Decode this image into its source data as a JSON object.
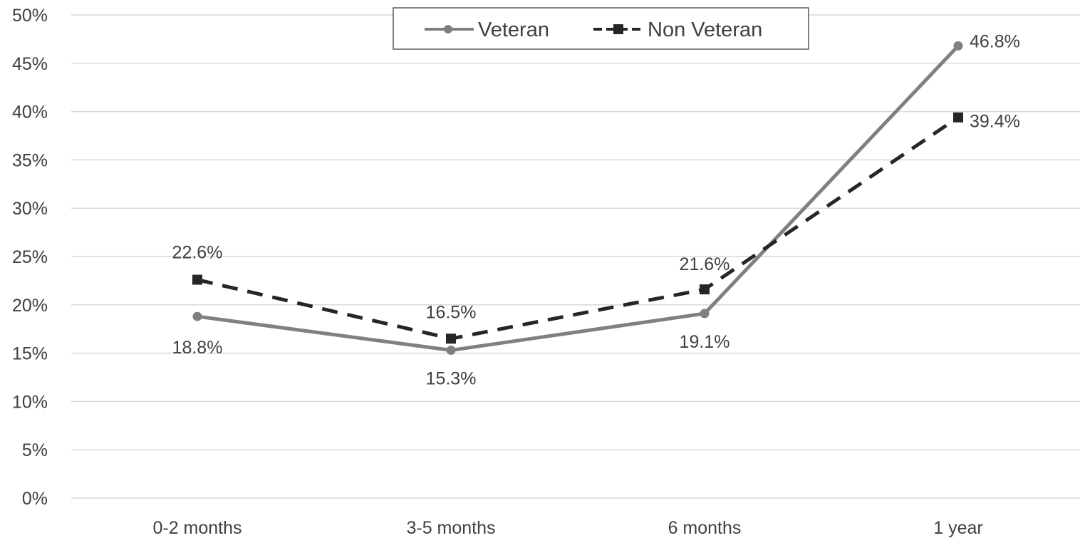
{
  "chart_data": {
    "type": "line",
    "categories": [
      "0-2 months",
      "3-5 months",
      "6 months",
      "1 year"
    ],
    "series": [
      {
        "name": "Veteran",
        "values": [
          18.8,
          15.3,
          19.1,
          46.8
        ],
        "labels": [
          "18.8%",
          "15.3%",
          "19.1%",
          "46.8%"
        ],
        "color": "#808080",
        "line_style": "solid",
        "marker": "circle"
      },
      {
        "name": "Non Veteran",
        "values": [
          22.6,
          16.5,
          21.6,
          39.4
        ],
        "labels": [
          "22.6%",
          "16.5%",
          "21.6%",
          "39.4%"
        ],
        "color": "#262626",
        "line_style": "dashed",
        "marker": "square"
      }
    ],
    "yticks": [
      "0%",
      "5%",
      "10%",
      "15%",
      "20%",
      "25%",
      "30%",
      "35%",
      "40%",
      "45%",
      "50%"
    ],
    "ylim": [
      0,
      50
    ],
    "grid": true,
    "legend_position": "top-center",
    "gridline_color": "#d9d9d9",
    "text_color": "#404040"
  }
}
